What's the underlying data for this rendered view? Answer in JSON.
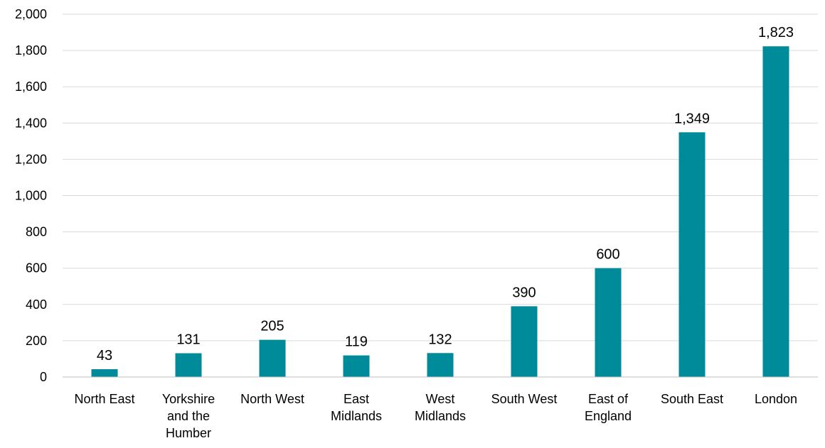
{
  "chart_data": {
    "type": "bar",
    "title": "",
    "xlabel": "",
    "ylabel": "",
    "categories": [
      [
        "North East"
      ],
      [
        "Yorkshire",
        "and the",
        "Humber"
      ],
      [
        "North West"
      ],
      [
        "East",
        "Midlands"
      ],
      [
        "West",
        "Midlands"
      ],
      [
        "South West"
      ],
      [
        "East of",
        "England"
      ],
      [
        "South East"
      ],
      [
        "London"
      ]
    ],
    "values": [
      43,
      131,
      205,
      119,
      132,
      390,
      600,
      1349,
      1823
    ],
    "value_labels": [
      "43",
      "131",
      "205",
      "119",
      "132",
      "390",
      "600",
      "1,349",
      "1,823"
    ],
    "ylim": [
      0,
      2000
    ],
    "yticks": [
      0,
      200,
      400,
      600,
      800,
      1000,
      1200,
      1400,
      1600,
      1800,
      2000
    ],
    "ytick_labels": [
      "0",
      "200",
      "400",
      "600",
      "800",
      "1,000",
      "1,200",
      "1,400",
      "1,600",
      "1,800",
      "2,000"
    ],
    "grid": true,
    "legend": false,
    "colors": {
      "bar": "#008B9A"
    }
  }
}
